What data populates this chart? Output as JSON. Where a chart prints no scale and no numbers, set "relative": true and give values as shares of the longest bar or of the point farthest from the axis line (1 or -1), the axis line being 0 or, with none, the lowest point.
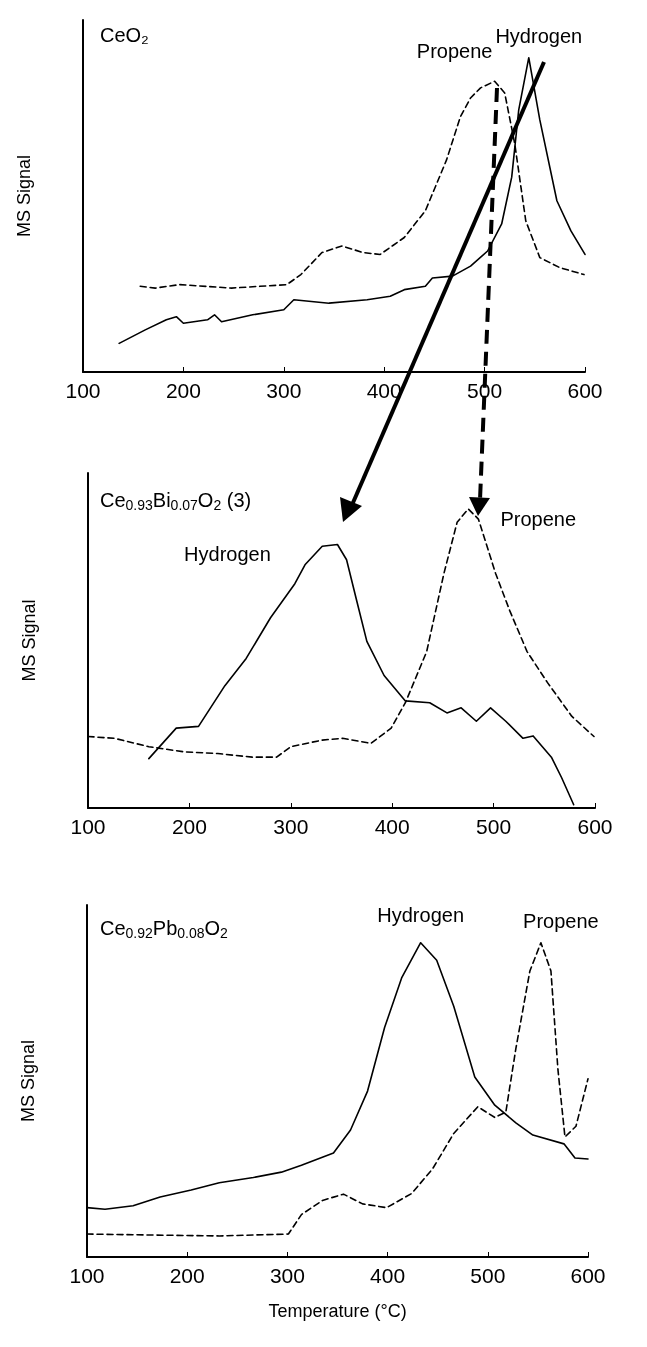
{
  "chart_data": [
    {
      "type": "line",
      "title": "CeO₂",
      "ylabel": "MS Signal",
      "relative": true,
      "xlim": [
        100,
        600
      ],
      "xticks": [
        100,
        200,
        300,
        400,
        500,
        600
      ],
      "marker": "none",
      "series": [
        {
          "name": "Hydrogen",
          "color": "#000000",
          "line_style": "solid",
          "x": [
            136,
            162,
            183,
            193,
            200,
            224,
            231,
            238,
            269,
            300,
            310,
            345,
            383,
            406,
            420,
            441,
            448,
            468,
            486,
            503,
            517,
            527,
            534,
            544,
            555,
            572,
            586,
            600
          ],
          "values": [
            0.091,
            0.134,
            0.166,
            0.176,
            0.155,
            0.166,
            0.182,
            0.16,
            0.182,
            0.198,
            0.23,
            0.219,
            0.23,
            0.241,
            0.262,
            0.273,
            0.299,
            0.305,
            0.337,
            0.385,
            0.471,
            0.62,
            0.834,
            1.0,
            0.802,
            0.545,
            0.449,
            0.374
          ]
        },
        {
          "name": "Propene",
          "color": "#000000",
          "line_style": "dashed",
          "x": [
            157,
            172,
            196,
            248,
            303,
            317,
            338,
            358,
            379,
            396,
            420,
            441,
            462,
            476,
            486,
            496,
            510,
            520,
            530,
            541,
            555,
            575,
            599
          ],
          "values": [
            0.273,
            0.267,
            0.278,
            0.267,
            0.278,
            0.31,
            0.38,
            0.401,
            0.38,
            0.374,
            0.428,
            0.513,
            0.674,
            0.813,
            0.872,
            0.904,
            0.925,
            0.888,
            0.727,
            0.481,
            0.364,
            0.332,
            0.31
          ]
        }
      ]
    },
    {
      "type": "line",
      "title": "Ce$_{0.93}$Bi$_{0.07}$O$_{2}$ (3)",
      "ylabel": "MS Signal",
      "relative": true,
      "xlim": [
        100,
        600
      ],
      "xticks": [
        100,
        200,
        300,
        400,
        500,
        600
      ],
      "marker": "none",
      "series": [
        {
          "name": "Hydrogen",
          "color": "#000000",
          "line_style": "solid",
          "x": [
            160,
            187,
            209,
            235,
            256,
            280,
            304,
            314,
            331,
            346,
            355,
            365,
            375,
            392,
            413,
            437,
            454,
            468,
            483,
            497,
            512,
            529,
            539,
            557,
            567,
            579
          ],
          "values": [
            0.165,
            0.267,
            0.273,
            0.409,
            0.5,
            0.636,
            0.75,
            0.813,
            0.875,
            0.881,
            0.83,
            0.693,
            0.557,
            0.443,
            0.358,
            0.352,
            0.318,
            0.335,
            0.29,
            0.335,
            0.29,
            0.233,
            0.241,
            0.17,
            0.102,
            0.011
          ]
        },
        {
          "name": "Propene",
          "color": "#000000",
          "line_style": "dashed",
          "x": [
            100,
            126,
            160,
            194,
            228,
            262,
            286,
            300,
            331,
            351,
            379,
            399,
            413,
            434,
            451,
            464,
            475,
            485,
            502,
            516,
            533,
            553,
            577,
            599
          ],
          "values": [
            0.239,
            0.233,
            0.205,
            0.188,
            0.182,
            0.17,
            0.17,
            0.205,
            0.227,
            0.233,
            0.216,
            0.267,
            0.352,
            0.523,
            0.784,
            0.955,
            1.0,
            0.966,
            0.784,
            0.659,
            0.523,
            0.42,
            0.307,
            0.239
          ]
        }
      ]
    },
    {
      "type": "line",
      "title": "Ce$_{0.92}$Pb$_{0.08}$O$_{2}$",
      "ylabel": "MS Signal",
      "xlabel": "Temperature (°C)",
      "relative": true,
      "xlim": [
        100,
        600
      ],
      "xticks": [
        100,
        200,
        300,
        400,
        500,
        600
      ],
      "marker": "none",
      "series": [
        {
          "name": "Hydrogen",
          "color": "#000000",
          "line_style": "solid",
          "x": [
            100,
            118,
            146,
            173,
            204,
            232,
            266,
            294,
            314,
            346,
            363,
            380,
            397,
            414,
            433,
            449,
            466,
            487,
            507,
            528,
            545,
            576,
            587,
            600
          ],
          "values": [
            0.157,
            0.152,
            0.163,
            0.191,
            0.213,
            0.236,
            0.253,
            0.27,
            0.292,
            0.331,
            0.404,
            0.528,
            0.73,
            0.888,
            1.0,
            0.944,
            0.798,
            0.573,
            0.483,
            0.427,
            0.388,
            0.36,
            0.315,
            0.312
          ]
        },
        {
          "name": "Propene",
          "color": "#000000",
          "line_style": "dashed",
          "x": [
            100,
            163,
            232,
            301,
            314,
            335,
            356,
            375,
            399,
            424,
            445,
            466,
            490,
            507,
            518,
            528,
            542,
            553,
            563,
            570,
            577,
            588,
            600
          ],
          "values": [
            0.073,
            0.07,
            0.067,
            0.073,
            0.135,
            0.18,
            0.2,
            0.169,
            0.157,
            0.202,
            0.281,
            0.393,
            0.478,
            0.444,
            0.461,
            0.663,
            0.91,
            1.0,
            0.91,
            0.596,
            0.382,
            0.416,
            0.567
          ]
        }
      ]
    }
  ]
}
